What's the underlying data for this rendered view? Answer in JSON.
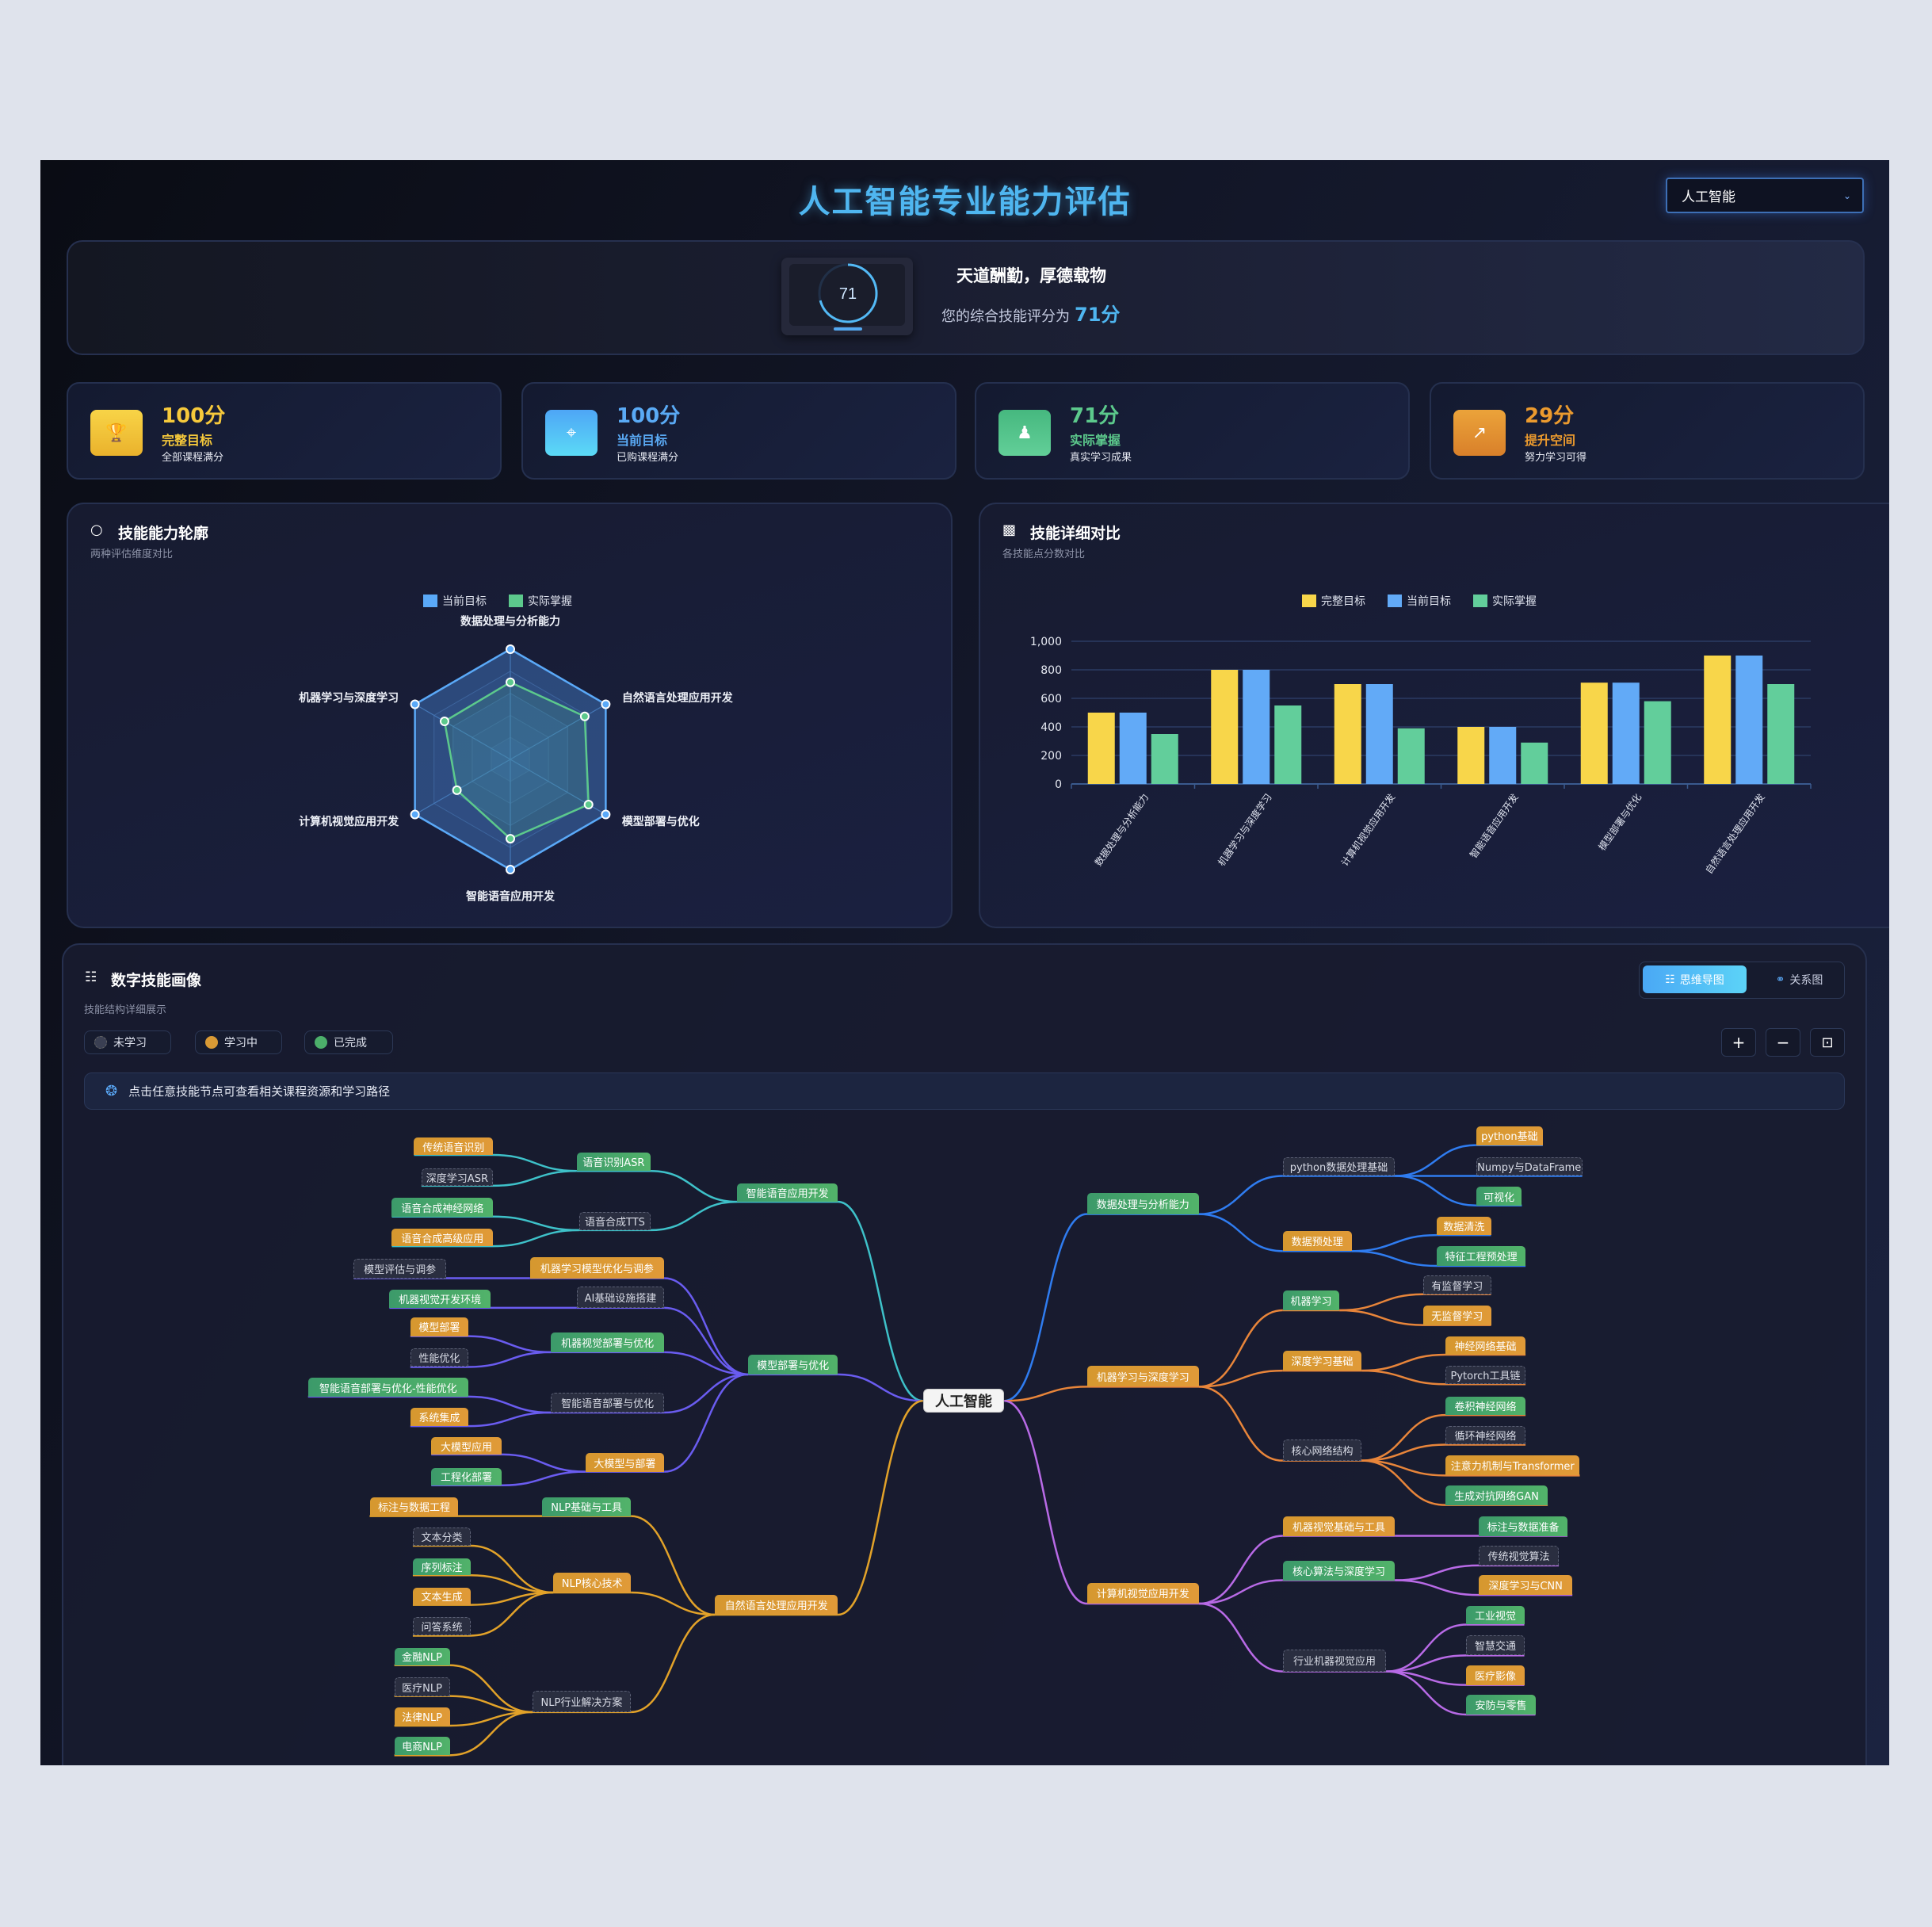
{
  "header": {
    "title": "人工智能专业能力评估",
    "dropdown_value": "人工智能"
  },
  "banner": {
    "score": 71,
    "motto": "天道酬勤，厚德载物",
    "score_text": "您的综合技能评分为",
    "score_value": "71分"
  },
  "stats": [
    {
      "value": "100分",
      "label": "完整目标",
      "sub": "全部课程满分",
      "color": "#f6c93b",
      "icon": "trophy-icon"
    },
    {
      "value": "100分",
      "label": "当前目标",
      "sub": "已购课程满分",
      "color": "#5aaaf5",
      "icon": "crosshair-icon"
    },
    {
      "value": "71分",
      "label": "实际掌握",
      "sub": "真实学习成果",
      "color": "#5cc98c",
      "icon": "user-check-icon"
    },
    {
      "value": "29分",
      "label": "提升空间",
      "sub": "努力学习可得",
      "color": "#eb9a2e",
      "icon": "trend-up-icon"
    }
  ],
  "radar_panel": {
    "title": "技能能力轮廓",
    "subtitle": "两种评估维度对比"
  },
  "bar_panel": {
    "title": "技能详细对比",
    "subtitle": "各技能点分数对比"
  },
  "chart_data": [
    {
      "type": "radar",
      "axes": [
        "数据处理与分析能力",
        "自然语言处理应用开发",
        "模型部署与优化",
        "智能语音应用开发",
        "计算机视觉应用开发",
        "机器学习与深度学习"
      ],
      "max": 100,
      "legend_position": "top",
      "series": [
        {
          "name": "当前目标",
          "color": "#5aa9f8",
          "values": [
            100,
            100,
            100,
            100,
            100,
            100
          ]
        },
        {
          "name": "实际掌握",
          "color": "#5cc98c",
          "values": [
            70,
            78,
            82,
            72,
            56,
            69
          ]
        }
      ]
    },
    {
      "type": "bar",
      "categories": [
        "数据处理与分析能力",
        "机器学习与深度学习",
        "计算机视觉应用开发",
        "智能语音应用开发",
        "模型部署与优化",
        "自然语言处理应用开发"
      ],
      "ylim": [
        0,
        1000
      ],
      "yticks": [
        "0",
        "200",
        "400",
        "600",
        "800",
        "1,000"
      ],
      "grid": true,
      "legend_position": "top",
      "series": [
        {
          "name": "完整目标",
          "color": "#f8d64a",
          "values": [
            500,
            800,
            700,
            400,
            710,
            900
          ]
        },
        {
          "name": "当前目标",
          "color": "#62aaf7",
          "values": [
            500,
            800,
            700,
            400,
            710,
            900
          ]
        },
        {
          "name": "实际掌握",
          "color": "#62ce9b",
          "values": [
            350,
            550,
            390,
            290,
            580,
            700
          ]
        }
      ]
    }
  ],
  "mindmap": {
    "title": "数字技能画像",
    "subtitle": "技能结构详细展示",
    "legend": [
      {
        "label": "未学习",
        "color": "#3a3f52"
      },
      {
        "label": "学习中",
        "color": "#d99a35"
      },
      {
        "label": "已完成",
        "color": "#4caf6a"
      }
    ],
    "view_tabs": [
      {
        "label": "思维导图",
        "active": true
      },
      {
        "label": "关系图",
        "active": false
      }
    ],
    "zoom_buttons": [
      "+",
      "−",
      "⊡"
    ],
    "tip": "点击任意技能节点可查看相关课程资源和学习路径",
    "root": "人工智能",
    "branches": [
      {
        "label": "智能语音应用开发",
        "status": "done",
        "side": "left",
        "color": "#3ec1c9",
        "children": [
          {
            "label": "语音识别ASR",
            "status": "done",
            "children": [
              {
                "label": "传统语音识别",
                "status": "learning"
              },
              {
                "label": "深度学习ASR",
                "status": "none"
              }
            ]
          },
          {
            "label": "语音合成TTS",
            "status": "none",
            "children": [
              {
                "label": "语音合成神经网络",
                "status": "done"
              },
              {
                "label": "语音合成高级应用",
                "status": "learning"
              }
            ]
          }
        ]
      },
      {
        "label": "模型部署与优化",
        "status": "done",
        "side": "left",
        "color": "#6a5cf0",
        "children": [
          {
            "label": "机器学习模型优化与调参",
            "status": "learning",
            "children": [
              {
                "label": "模型评估与调参",
                "status": "none"
              }
            ]
          },
          {
            "label": "AI基础设施搭建",
            "status": "none",
            "children": [
              {
                "label": "机器视觉开发环境",
                "status": "done"
              }
            ]
          },
          {
            "label": "机器视觉部署与优化",
            "status": "done",
            "children": [
              {
                "label": "模型部署",
                "status": "learning"
              },
              {
                "label": "性能优化",
                "status": "none"
              }
            ]
          },
          {
            "label": "智能语音部署与优化",
            "status": "none",
            "children": [
              {
                "label": "智能语音部署与优化-性能优化",
                "status": "done"
              },
              {
                "label": "系统集成",
                "status": "learning"
              }
            ]
          },
          {
            "label": "大模型与部署",
            "status": "learning",
            "children": [
              {
                "label": "大模型应用",
                "status": "learning"
              },
              {
                "label": "工程化部署",
                "status": "done"
              }
            ]
          }
        ]
      },
      {
        "label": "自然语言处理应用开发",
        "status": "learning",
        "side": "left",
        "color": "#e2a229",
        "children": [
          {
            "label": "NLP基础与工具",
            "status": "done",
            "children": [
              {
                "label": "标注与数据工程",
                "status": "learning"
              }
            ]
          },
          {
            "label": "NLP核心技术",
            "status": "learning",
            "children": [
              {
                "label": "文本分类",
                "status": "none"
              },
              {
                "label": "序列标注",
                "status": "done"
              },
              {
                "label": "文本生成",
                "status": "learning"
              },
              {
                "label": "问答系统",
                "status": "none"
              }
            ]
          },
          {
            "label": "NLP行业解决方案",
            "status": "none",
            "children": [
              {
                "label": "金融NLP",
                "status": "done"
              },
              {
                "label": "医疗NLP",
                "status": "none"
              },
              {
                "label": "法律NLP",
                "status": "learning"
              },
              {
                "label": "电商NLP",
                "status": "done"
              }
            ]
          }
        ]
      },
      {
        "label": "数据处理与分析能力",
        "status": "done",
        "side": "right",
        "color": "#2f7cf0",
        "children": [
          {
            "label": "python数据处理基础",
            "status": "none",
            "children": [
              {
                "label": "python基础",
                "status": "learning"
              },
              {
                "label": "Numpy与DataFrame",
                "status": "none"
              },
              {
                "label": "可视化",
                "status": "done"
              }
            ]
          },
          {
            "label": "数据预处理",
            "status": "learning",
            "children": [
              {
                "label": "数据清洗",
                "status": "learning"
              },
              {
                "label": "特征工程预处理",
                "status": "done"
              }
            ]
          }
        ]
      },
      {
        "label": "机器学习与深度学习",
        "status": "learning",
        "side": "right",
        "color": "#e8853a",
        "children": [
          {
            "label": "机器学习",
            "status": "done",
            "children": [
              {
                "label": "有监督学习",
                "status": "none"
              },
              {
                "label": "无监督学习",
                "status": "learning"
              }
            ]
          },
          {
            "label": "深度学习基础",
            "status": "learning",
            "children": [
              {
                "label": "神经网络基础",
                "status": "learning"
              },
              {
                "label": "Pytorch工具链",
                "status": "none"
              }
            ]
          },
          {
            "label": "核心网络结构",
            "status": "none",
            "children": [
              {
                "label": "卷积神经网络",
                "status": "done"
              },
              {
                "label": "循环神经网络",
                "status": "none"
              },
              {
                "label": "注意力机制与Transformer",
                "status": "learning"
              },
              {
                "label": "生成对抗网络GAN",
                "status": "done"
              }
            ]
          }
        ]
      },
      {
        "label": "计算机视觉应用开发",
        "status": "learning",
        "side": "right",
        "color": "#b86ae6",
        "children": [
          {
            "label": "机器视觉基础与工具",
            "status": "learning",
            "children": [
              {
                "label": "标注与数据准备",
                "status": "done"
              }
            ]
          },
          {
            "label": "核心算法与深度学习",
            "status": "done",
            "children": [
              {
                "label": "传统视觉算法",
                "status": "none"
              },
              {
                "label": "深度学习与CNN",
                "status": "learning"
              }
            ]
          },
          {
            "label": "行业机器视觉应用",
            "status": "none",
            "children": [
              {
                "label": "工业视觉",
                "status": "done"
              },
              {
                "label": "智慧交通",
                "status": "none"
              },
              {
                "label": "医疗影像",
                "status": "learning"
              },
              {
                "label": "安防与零售",
                "status": "done"
              }
            ]
          }
        ]
      }
    ]
  }
}
